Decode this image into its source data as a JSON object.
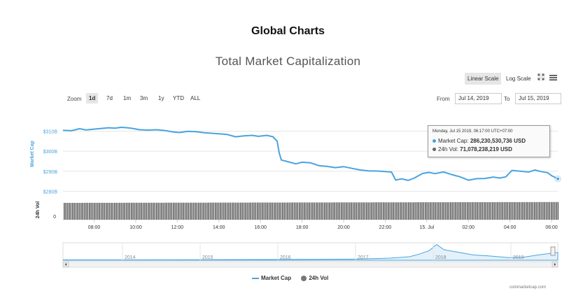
{
  "header": {
    "title": "Global Charts"
  },
  "controls": {
    "linear_scale": "Linear Scale",
    "log_scale": "Log Scale",
    "zoom_label": "Zoom",
    "zoom_buttons": [
      "1d",
      "7d",
      "1m",
      "3m",
      "1y",
      "YTD",
      "ALL"
    ],
    "zoom_active": "1d",
    "from_label": "From",
    "from_value": "Jul 14, 2019",
    "to_label": "To",
    "to_value": "Jul 15, 2019"
  },
  "tooltip": {
    "header": "Monday, Jul 15 2019, 06:17:00 UTC+07:00",
    "market_cap_label": "Market Cap:",
    "market_cap_value": "286,230,530,736 USD",
    "vol_label": "24h Vol:",
    "vol_value": "71,078,238,219 USD"
  },
  "legend": {
    "market_cap": "Market Cap",
    "vol": "24h Vol"
  },
  "credit": "coinmarketcap.com",
  "colors": {
    "line": "#4aa3df",
    "vol": "#555555",
    "accent": "#4aa3df"
  },
  "chart_data": {
    "type": "line",
    "title": "Total Market Capitalization",
    "ylabel": "Market Cap",
    "y2label": "24h Vol",
    "ylim": [
      277,
      314
    ],
    "yticks": [
      280,
      290,
      300,
      310
    ],
    "ytick_labels": [
      "$280B",
      "$290B",
      "$300B",
      "$310B"
    ],
    "y2tick_labels": [
      "0"
    ],
    "xlim": [
      6.5,
      30.3
    ],
    "xticks": [
      8,
      10,
      12,
      14,
      16,
      18,
      20,
      22,
      24,
      26,
      28,
      30
    ],
    "xtick_labels": [
      "08:00",
      "10:00",
      "12:00",
      "14:00",
      "16:00",
      "18:00",
      "20:00",
      "22:00",
      "15. Jul",
      "02:00",
      "04:00",
      "06:00"
    ],
    "series": [
      {
        "name": "Market Cap",
        "unit": "billion USD",
        "x": [
          6.5,
          6.9,
          7.3,
          7.6,
          7.9,
          8.3,
          8.7,
          9.0,
          9.3,
          9.6,
          9.8,
          10.2,
          10.6,
          11.0,
          11.4,
          11.8,
          12.1,
          12.5,
          12.9,
          13.3,
          13.7,
          14.0,
          14.4,
          14.8,
          15.2,
          15.6,
          15.9,
          16.3,
          16.6,
          16.8,
          16.9,
          17.0,
          17.3,
          17.7,
          18.0,
          18.4,
          18.8,
          19.2,
          19.6,
          20.0,
          20.4,
          20.8,
          21.2,
          21.6,
          22.0,
          22.3,
          22.5,
          22.8,
          23.1,
          23.4,
          23.8,
          24.1,
          24.4,
          24.8,
          25.2,
          25.6,
          26.0,
          26.4,
          26.8,
          27.2,
          27.5,
          27.8,
          28.1,
          28.5,
          28.9,
          29.2,
          29.5,
          29.8,
          30.0,
          30.3
        ],
        "y": [
          310.4,
          310.2,
          311.2,
          310.6,
          310.9,
          311.3,
          311.7,
          311.5,
          311.9,
          311.7,
          311.4,
          310.7,
          310.5,
          310.7,
          310.3,
          309.6,
          309.3,
          309.9,
          309.7,
          309.2,
          308.9,
          308.7,
          308.3,
          307.2,
          307.6,
          307.9,
          307.4,
          307.9,
          307.2,
          305.0,
          299.2,
          295.6,
          294.8,
          293.7,
          294.5,
          294.2,
          292.8,
          292.4,
          291.8,
          292.3,
          291.4,
          290.6,
          290.2,
          290.1,
          289.8,
          289.6,
          285.6,
          286.2,
          285.4,
          286.6,
          288.9,
          289.4,
          288.8,
          289.6,
          288.3,
          287.2,
          285.5,
          286.3,
          286.4,
          287.1,
          286.6,
          287.2,
          290.4,
          290.0,
          289.6,
          290.6,
          289.8,
          289.3,
          287.8,
          286.2
        ]
      },
      {
        "name": "24h Vol",
        "unit": "relative",
        "x": [
          6.5,
          30.3
        ],
        "y": [
          1.0,
          1.05
        ]
      }
    ],
    "navigator": {
      "labels": [
        "2014",
        "2015",
        "2016",
        "2017",
        "2018",
        "2019"
      ]
    }
  }
}
